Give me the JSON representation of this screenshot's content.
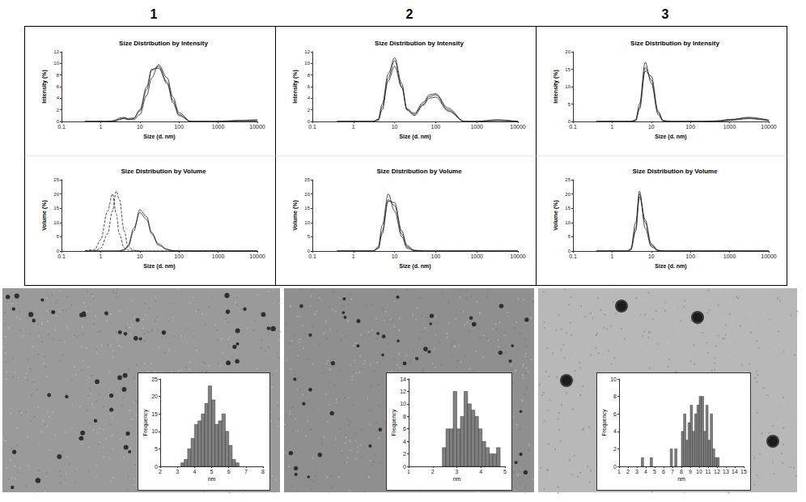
{
  "chart_data": [
    {
      "panel": "1",
      "type": "line",
      "title": "Size Distribution by Intensity",
      "x_label": "Size (d. nm)",
      "y_label": "Intensity (%)",
      "log": "x",
      "grid": false,
      "x": [
        0.4,
        0.7,
        1,
        1.5,
        2,
        2.5,
        3,
        4,
        5,
        7,
        10,
        15,
        20,
        30,
        50,
        70,
        100,
        200,
        500,
        1000,
        3000,
        10000
      ],
      "xlim": [
        0.1,
        10000
      ],
      "xticks": [
        0.1,
        1,
        10,
        100,
        1000,
        10000
      ],
      "ylim": [
        0,
        12
      ],
      "yticks": [
        0,
        2,
        4,
        6,
        8,
        10,
        12
      ],
      "series": [
        {
          "color": "#222222",
          "line_style": "solid",
          "values": [
            0,
            0,
            0,
            0,
            0.1,
            0.3,
            0.6,
            0.7,
            0.4,
            0.3,
            1.2,
            4.5,
            7.5,
            9.8,
            7.5,
            4.2,
            1.5,
            0,
            0,
            0,
            0.2,
            0.3
          ]
        },
        {
          "color": "#222222",
          "line_style": "solid",
          "values": [
            0,
            0,
            0,
            0,
            0,
            0.2,
            0.4,
            0.5,
            0.3,
            0.5,
            1.8,
            5.5,
            8.8,
            9.5,
            6.8,
            3.6,
            1.2,
            0,
            0,
            0,
            0.1,
            0.2
          ]
        },
        {
          "color": "#222222",
          "line_style": "solid",
          "values": [
            0,
            0,
            0,
            0,
            0,
            0.1,
            0.3,
            0.6,
            0.5,
            0.6,
            2,
            6,
            9,
            9.2,
            6.5,
            3.2,
            1,
            0,
            0,
            0,
            0,
            0.1
          ]
        }
      ]
    },
    {
      "panel": "1",
      "type": "line",
      "title": "Size Distribution by Volume",
      "x_label": "Size (d. nm)",
      "y_label": "Volume (%)",
      "log": "x",
      "grid": false,
      "x": [
        0.4,
        0.7,
        1,
        1.5,
        2,
        2.5,
        3,
        4,
        5,
        7,
        10,
        15,
        20,
        30,
        50,
        70,
        100,
        200,
        500,
        1000,
        3000,
        10000
      ],
      "xlim": [
        0.1,
        10000
      ],
      "xticks": [
        0.1,
        1,
        10,
        100,
        1000,
        10000
      ],
      "ylim": [
        0,
        25
      ],
      "yticks": [
        0,
        5,
        10,
        15,
        20,
        25
      ],
      "series": [
        {
          "color": "#222222",
          "line_style": "dashed",
          "values": [
            0,
            0.5,
            4,
            14,
            20,
            13,
            6,
            1,
            0.3,
            0.1,
            0,
            0,
            0,
            0,
            0,
            0,
            0,
            0,
            0,
            0,
            0,
            0
          ]
        },
        {
          "color": "#222222",
          "line_style": "dashed",
          "values": [
            0,
            0,
            1,
            6,
            14,
            21,
            18,
            7,
            1.5,
            0.3,
            0,
            0,
            0,
            0,
            0,
            0,
            0,
            0,
            0,
            0,
            0,
            0
          ]
        },
        {
          "color": "#222222",
          "line_style": "solid",
          "values": [
            0,
            0,
            0,
            0,
            0,
            0,
            0.1,
            0.5,
            2,
            8,
            13.5,
            11,
            6,
            2,
            0.5,
            0.1,
            0,
            0,
            0,
            0,
            0,
            0
          ]
        },
        {
          "color": "#222222",
          "line_style": "solid",
          "values": [
            0,
            0,
            0,
            0,
            0,
            0,
            0,
            0.3,
            1.5,
            7,
            14.5,
            12,
            6.5,
            2.5,
            0.6,
            0.1,
            0,
            0,
            0,
            0,
            0,
            0
          ]
        }
      ]
    },
    {
      "panel": "1",
      "type": "histogram",
      "x_label": "nm",
      "y_label": "Frequency",
      "color": "#808080",
      "grid": false,
      "bins": [
        3.2,
        3.4,
        3.6,
        3.8,
        4,
        4.2,
        4.4,
        4.6,
        4.8,
        5,
        5.2,
        5.4,
        5.6,
        5.8,
        6,
        6.2,
        6.4,
        6.6
      ],
      "counts": [
        1,
        2,
        5,
        8,
        12,
        13,
        15,
        18,
        23,
        19,
        12,
        13,
        15,
        10,
        6,
        2,
        1
      ],
      "xlim": [
        2,
        8
      ],
      "xticks": [
        2,
        3,
        4,
        5,
        6,
        7,
        8
      ],
      "ylim": [
        0,
        25
      ],
      "yticks": [
        0,
        5,
        10,
        15,
        20,
        25
      ]
    },
    {
      "panel": "2",
      "type": "line",
      "title": "Size Distribution by Intensity",
      "x_label": "Size (d. nm)",
      "y_label": "Intensity (%)",
      "log": "x",
      "grid": false,
      "x": [
        0.4,
        0.7,
        1,
        1.5,
        2,
        2.5,
        3,
        4,
        5,
        7,
        10,
        15,
        20,
        30,
        50,
        70,
        100,
        200,
        500,
        1000,
        3000,
        10000
      ],
      "xlim": [
        0.1,
        10000
      ],
      "xticks": [
        0.1,
        1,
        10,
        100,
        1000,
        10000
      ],
      "ylim": [
        0,
        12
      ],
      "yticks": [
        0,
        2,
        4,
        6,
        8,
        10,
        12
      ],
      "series": [
        {
          "color": "#222222",
          "line_style": "solid",
          "values": [
            0,
            0,
            0,
            0,
            0,
            0,
            0,
            0.3,
            2.5,
            7.5,
            10.5,
            6,
            2,
            1.2,
            3,
            4.3,
            4.6,
            2,
            0,
            0,
            0.2,
            0
          ]
        },
        {
          "color": "#222222",
          "line_style": "solid",
          "values": [
            0,
            0,
            0,
            0,
            0,
            0,
            0,
            0.2,
            2,
            7,
            9.5,
            5.8,
            2.2,
            1.4,
            3.3,
            4.6,
            4.8,
            2.3,
            0,
            0,
            0.3,
            0
          ]
        },
        {
          "color": "#222222",
          "line_style": "solid",
          "values": [
            0,
            0,
            0,
            0,
            0,
            0,
            0,
            0.4,
            3,
            8.2,
            11,
            6.5,
            2,
            1,
            2.8,
            4,
            4.2,
            1.8,
            0,
            0,
            0,
            0
          ]
        }
      ]
    },
    {
      "panel": "2",
      "type": "line",
      "title": "Size Distribution by Volume",
      "x_label": "Size (d. nm)",
      "y_label": "Volume (%)",
      "log": "x",
      "grid": false,
      "x": [
        0.4,
        0.7,
        1,
        1.5,
        2,
        2.5,
        3,
        4,
        5,
        7,
        10,
        15,
        20,
        30,
        50,
        70,
        100,
        200,
        500,
        1000,
        3000,
        10000
      ],
      "xlim": [
        0.1,
        10000
      ],
      "xticks": [
        0.1,
        1,
        10,
        100,
        1000,
        10000
      ],
      "ylim": [
        0,
        25
      ],
      "yticks": [
        0,
        5,
        10,
        15,
        20,
        25
      ],
      "series": [
        {
          "color": "#222222",
          "line_style": "solid",
          "values": [
            0,
            0,
            0,
            0,
            0,
            0,
            0,
            1,
            7,
            18,
            16,
            6,
            1.5,
            0.2,
            0,
            0,
            0,
            0,
            0,
            0,
            0,
            0
          ]
        },
        {
          "color": "#222222",
          "line_style": "solid",
          "values": [
            0,
            0,
            0,
            0,
            0,
            0,
            0,
            1.5,
            9,
            20,
            14,
            5,
            1,
            0.1,
            0,
            0,
            0,
            0,
            0,
            0,
            0,
            0
          ]
        },
        {
          "color": "#222222",
          "line_style": "solid",
          "values": [
            0,
            0,
            0,
            0,
            0,
            0,
            0,
            0.8,
            6,
            17.5,
            17,
            7,
            2,
            0.3,
            0,
            0,
            0,
            0,
            0,
            0,
            0,
            0
          ]
        }
      ]
    },
    {
      "panel": "2",
      "type": "histogram",
      "x_label": "nm",
      "y_label": "Frequency",
      "color": "#808080",
      "grid": false,
      "bins": [
        2.4,
        2.55,
        2.7,
        2.85,
        3,
        3.15,
        3.3,
        3.45,
        3.6,
        3.75,
        3.9,
        4.05,
        4.2,
        4.35,
        4.5,
        4.65,
        4.8
      ],
      "counts": [
        3,
        6,
        6,
        12,
        6,
        8,
        12,
        10,
        9,
        8,
        6,
        4,
        3,
        2,
        2,
        3
      ],
      "xlim": [
        1,
        5
      ],
      "xticks": [
        1,
        2,
        3,
        4,
        5
      ],
      "ylim": [
        0,
        14
      ],
      "yticks": [
        0,
        2,
        4,
        6,
        8,
        10,
        12,
        14
      ]
    },
    {
      "panel": "3",
      "type": "line",
      "title": "Size Distribution by Intensity",
      "x_label": "Size (d. nm)",
      "y_label": "Intensity (%)",
      "log": "x",
      "grid": false,
      "x": [
        0.4,
        0.7,
        1,
        1.5,
        2,
        2.5,
        3,
        4,
        5,
        7,
        10,
        15,
        20,
        30,
        50,
        70,
        100,
        200,
        500,
        1000,
        3000,
        10000
      ],
      "xlim": [
        0.1,
        10000
      ],
      "xticks": [
        0.1,
        1,
        10,
        100,
        1000,
        10000
      ],
      "ylim": [
        0,
        20
      ],
      "yticks": [
        0,
        5,
        10,
        15,
        20
      ],
      "series": [
        {
          "color": "#222222",
          "line_style": "solid",
          "values": [
            0,
            0,
            0,
            0,
            0,
            0,
            0,
            0.3,
            4,
            15.5,
            12,
            2.5,
            0.2,
            0,
            0,
            0,
            0,
            0,
            0.2,
            0.6,
            1,
            0.3
          ]
        },
        {
          "color": "#222222",
          "line_style": "solid",
          "values": [
            0,
            0,
            0,
            0,
            0,
            0,
            0,
            0.5,
            5,
            17,
            11,
            2,
            0.1,
            0,
            0,
            0,
            0,
            0,
            0.1,
            0.4,
            1.2,
            0.4
          ]
        },
        {
          "color": "#222222",
          "line_style": "solid",
          "values": [
            0,
            0,
            0,
            0,
            0,
            0,
            0,
            0.2,
            3.5,
            14.5,
            13,
            3,
            0.3,
            0,
            0,
            0,
            0,
            0,
            0,
            0.3,
            0.8,
            0.2
          ]
        }
      ]
    },
    {
      "panel": "3",
      "type": "line",
      "title": "Size Distribution by Volume",
      "x_label": "Size (d. nm)",
      "y_label": "Volume (%)",
      "log": "x",
      "grid": false,
      "x": [
        0.4,
        0.7,
        1,
        1.5,
        2,
        2.5,
        3,
        4,
        5,
        7,
        10,
        15,
        20,
        30,
        50,
        70,
        100,
        200,
        500,
        1000,
        3000,
        10000
      ],
      "xlim": [
        0.1,
        10000
      ],
      "xticks": [
        0.1,
        1,
        10,
        100,
        1000,
        10000
      ],
      "ylim": [
        0,
        25
      ],
      "yticks": [
        0,
        5,
        10,
        15,
        20,
        25
      ],
      "series": [
        {
          "color": "#222222",
          "line_style": "solid",
          "values": [
            0,
            0,
            0,
            0,
            0,
            0,
            0.5,
            8,
            20,
            10,
            2,
            0.2,
            0,
            0,
            0,
            0,
            0,
            0,
            0,
            0,
            0,
            0
          ]
        },
        {
          "color": "#222222",
          "line_style": "solid",
          "values": [
            0,
            0,
            0,
            0,
            0,
            0,
            1,
            10,
            21,
            8,
            1.5,
            0.1,
            0,
            0,
            0,
            0,
            0,
            0,
            0,
            0,
            0,
            0
          ]
        },
        {
          "color": "#222222",
          "line_style": "solid",
          "values": [
            0,
            0,
            0,
            0,
            0,
            0,
            0.3,
            7,
            19,
            11,
            2.5,
            0.3,
            0,
            0,
            0,
            0,
            0,
            0,
            0,
            0,
            0,
            0
          ]
        }
      ]
    },
    {
      "panel": "3",
      "type": "histogram",
      "x_label": "nm",
      "y_label": "Frequency",
      "color": "#808080",
      "grid": false,
      "bins": [
        3.5,
        3.75,
        4,
        4.25,
        4.5,
        4.75,
        5,
        5.25,
        5.5,
        5.75,
        6,
        6.25,
        6.5,
        6.75,
        7,
        7.25,
        7.5,
        7.75,
        8,
        8.25,
        8.5,
        8.75,
        9,
        9.25,
        9.5,
        9.75,
        10,
        10.25,
        10.5,
        10.75,
        11,
        11.25,
        11.5,
        11.75,
        12,
        12.25
      ],
      "counts": [
        1,
        0,
        0,
        0,
        1,
        0,
        0,
        0,
        0,
        0,
        0,
        0,
        0,
        2,
        0,
        2,
        0,
        0,
        4,
        6,
        3,
        5,
        7,
        4,
        6,
        7,
        8,
        8,
        4,
        7,
        3,
        6,
        2,
        1,
        1
      ],
      "xlim": [
        1,
        15
      ],
      "xticks": [
        1,
        2,
        3,
        4,
        5,
        6,
        7,
        8,
        9,
        10,
        11,
        12,
        13,
        14,
        15
      ],
      "ylim": [
        0,
        10
      ],
      "yticks": [
        0,
        2,
        4,
        6,
        8,
        10
      ]
    }
  ]
}
